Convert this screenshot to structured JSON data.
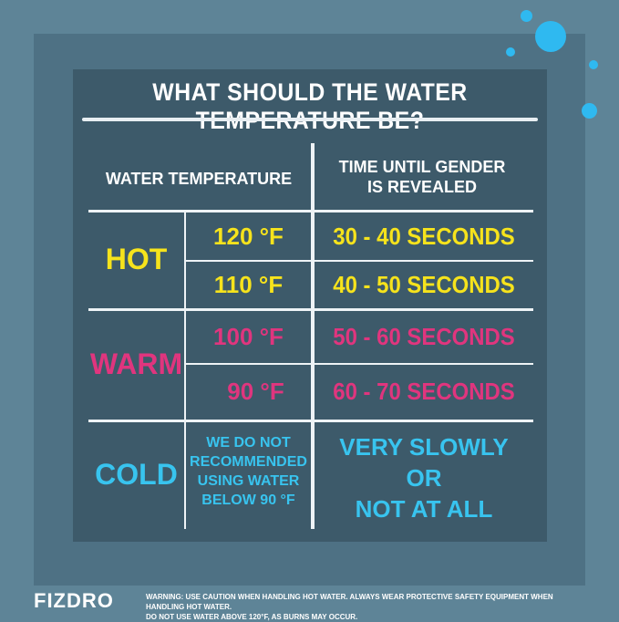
{
  "title": "WHAT SHOULD THE WATER TEMPERATURE BE?",
  "headers": {
    "water_temperature": "WATER TEMPERATURE",
    "time_line1": "TIME UNTIL GENDER",
    "time_line2": "IS REVEALED"
  },
  "rows": {
    "hot": {
      "label": "HOT",
      "color": "#f6e31c",
      "entries": [
        {
          "temp": "120 °F",
          "time": "30 - 40 SECONDS"
        },
        {
          "temp": "110 °F",
          "time": "40 - 50 SECONDS"
        }
      ]
    },
    "warm": {
      "label": "WARM",
      "color": "#e0357e",
      "entries": [
        {
          "temp": "100 °F",
          "time": "50 - 60 SECONDS"
        },
        {
          "temp": "90 °F",
          "time": "60 - 70 SECONDS"
        }
      ]
    },
    "cold": {
      "label": "COLD",
      "color": "#38c4ef",
      "note": [
        "WE DO NOT",
        "RECOMMENDED",
        "USING WATER",
        "BELOW 90 °F"
      ],
      "time": [
        "VERY SLOWLY",
        "OR",
        "NOT AT ALL"
      ]
    }
  },
  "footer": {
    "brand": "FIZDRO",
    "warning_line1": "WARNING: USE CAUTION WHEN HANDLING HOT WATER. ALWAYS WEAR PROTECTIVE SAFETY EQUIPMENT WHEN HANDLING HOT WATER.",
    "warning_line2": "DO NOT USE WATER ABOVE 120°F, AS BURNS MAY OCCUR."
  }
}
